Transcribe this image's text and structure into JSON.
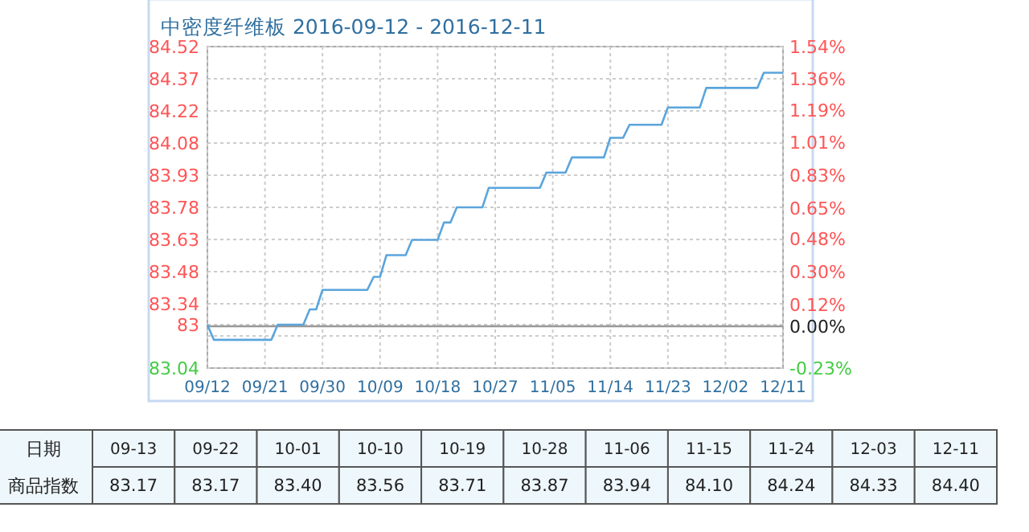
{
  "chart_data": [
    {
      "type": "line",
      "title": "中密度纤维板 2016-09-12 - 2016-12-11",
      "x": [
        "2016-09-12",
        "2016-09-13",
        "2016-09-22",
        "2016-09-23",
        "2016-09-27",
        "2016-09-28",
        "2016-09-29",
        "2016-09-30",
        "2016-10-07",
        "2016-10-08",
        "2016-10-09",
        "2016-10-10",
        "2016-10-13",
        "2016-10-14",
        "2016-10-18",
        "2016-10-19",
        "2016-10-20",
        "2016-10-21",
        "2016-10-25",
        "2016-10-26",
        "2016-11-03",
        "2016-11-04",
        "2016-11-07",
        "2016-11-08",
        "2016-11-13",
        "2016-11-14",
        "2016-11-16",
        "2016-11-17",
        "2016-11-22",
        "2016-11-23",
        "2016-11-28",
        "2016-11-29",
        "2016-12-07",
        "2016-12-08",
        "2016-12-11"
      ],
      "series": [
        {
          "color": "#5aa5dc",
          "values": [
            83.24,
            83.17,
            83.17,
            83.24,
            83.24,
            83.31,
            83.31,
            83.4,
            83.4,
            83.46,
            83.46,
            83.56,
            83.56,
            83.63,
            83.63,
            83.71,
            83.71,
            83.78,
            83.78,
            83.87,
            83.87,
            83.94,
            83.94,
            84.01,
            84.01,
            84.1,
            84.1,
            84.16,
            84.16,
            84.24,
            84.24,
            84.33,
            84.33,
            84.4,
            84.4
          ]
        }
      ],
      "xlim": [
        "2016-09-12",
        "2016-12-11"
      ],
      "xticks": [
        {
          "value": "2016-09-12",
          "label": "09/12"
        },
        {
          "value": "2016-09-21",
          "label": "09/21"
        },
        {
          "value": "2016-09-30",
          "label": "09/30"
        },
        {
          "value": "2016-10-09",
          "label": "10/09"
        },
        {
          "value": "2016-10-18",
          "label": "10/18"
        },
        {
          "value": "2016-10-27",
          "label": "10/27"
        },
        {
          "value": "2016-11-05",
          "label": "11/05"
        },
        {
          "value": "2016-11-14",
          "label": "11/14"
        },
        {
          "value": "2016-11-23",
          "label": "11/23"
        },
        {
          "value": "2016-12-02",
          "label": "12/02"
        },
        {
          "value": "2016-12-11",
          "label": "12/11"
        }
      ],
      "ylim": [
        83.04,
        84.52
      ],
      "yticks": [
        83.04,
        {
          "value": 83.188,
          "label": null
        },
        {
          "value": 83.24,
          "label": "83"
        },
        {
          "value": 83.336,
          "label": "83.34"
        },
        {
          "value": 83.484,
          "label": "83.48"
        },
        {
          "value": 83.632,
          "label": "83.63"
        },
        83.78,
        {
          "value": 83.928,
          "label": "83.93"
        },
        {
          "value": 84.076,
          "label": "84.08"
        },
        {
          "value": 84.224,
          "label": "84.22"
        },
        {
          "value": 84.372,
          "label": "84.37"
        },
        84.52
      ],
      "y2lim": [
        -0.23,
        1.54
      ],
      "y2ticks": [
        {
          "value": -0.23,
          "label": "-0.23%"
        },
        {
          "value": 0,
          "label": "0.00%"
        },
        {
          "value": 0.12,
          "label": "0.12%"
        },
        {
          "value": 0.3,
          "label": "0.30%"
        },
        {
          "value": 0.48,
          "label": "0.48%"
        },
        {
          "value": 0.65,
          "label": "0.65%"
        },
        {
          "value": 0.83,
          "label": "0.83%"
        },
        {
          "value": 1.01,
          "label": "1.01%"
        },
        {
          "value": 1.19,
          "label": "1.19%"
        },
        {
          "value": 1.36,
          "label": "1.36%"
        },
        {
          "value": 1.54,
          "label": "1.54%"
        }
      ],
      "ref_lines": [
        {
          "axis": "y2",
          "value": 0,
          "color": "#999999"
        }
      ],
      "grid": true,
      "line_style": "solid",
      "marker": "none"
    },
    {
      "type": "other",
      "categories": [
        "09-13",
        "09-22",
        "10-01",
        "10-10",
        "10-19",
        "10-28",
        "11-06",
        "11-15",
        "11-24",
        "12-03",
        "12-11"
      ],
      "values": [
        83.17,
        83.17,
        83.4,
        83.56,
        83.71,
        83.87,
        83.94,
        84.1,
        84.24,
        84.33,
        84.4
      ],
      "value_labels": [
        "83.17",
        "83.17",
        "83.40",
        "83.56",
        "83.71",
        "83.87",
        "83.94",
        "84.10",
        "84.24",
        "84.33",
        "84.40"
      ],
      "annotations": [
        "日期",
        "商品指数"
      ]
    }
  ]
}
